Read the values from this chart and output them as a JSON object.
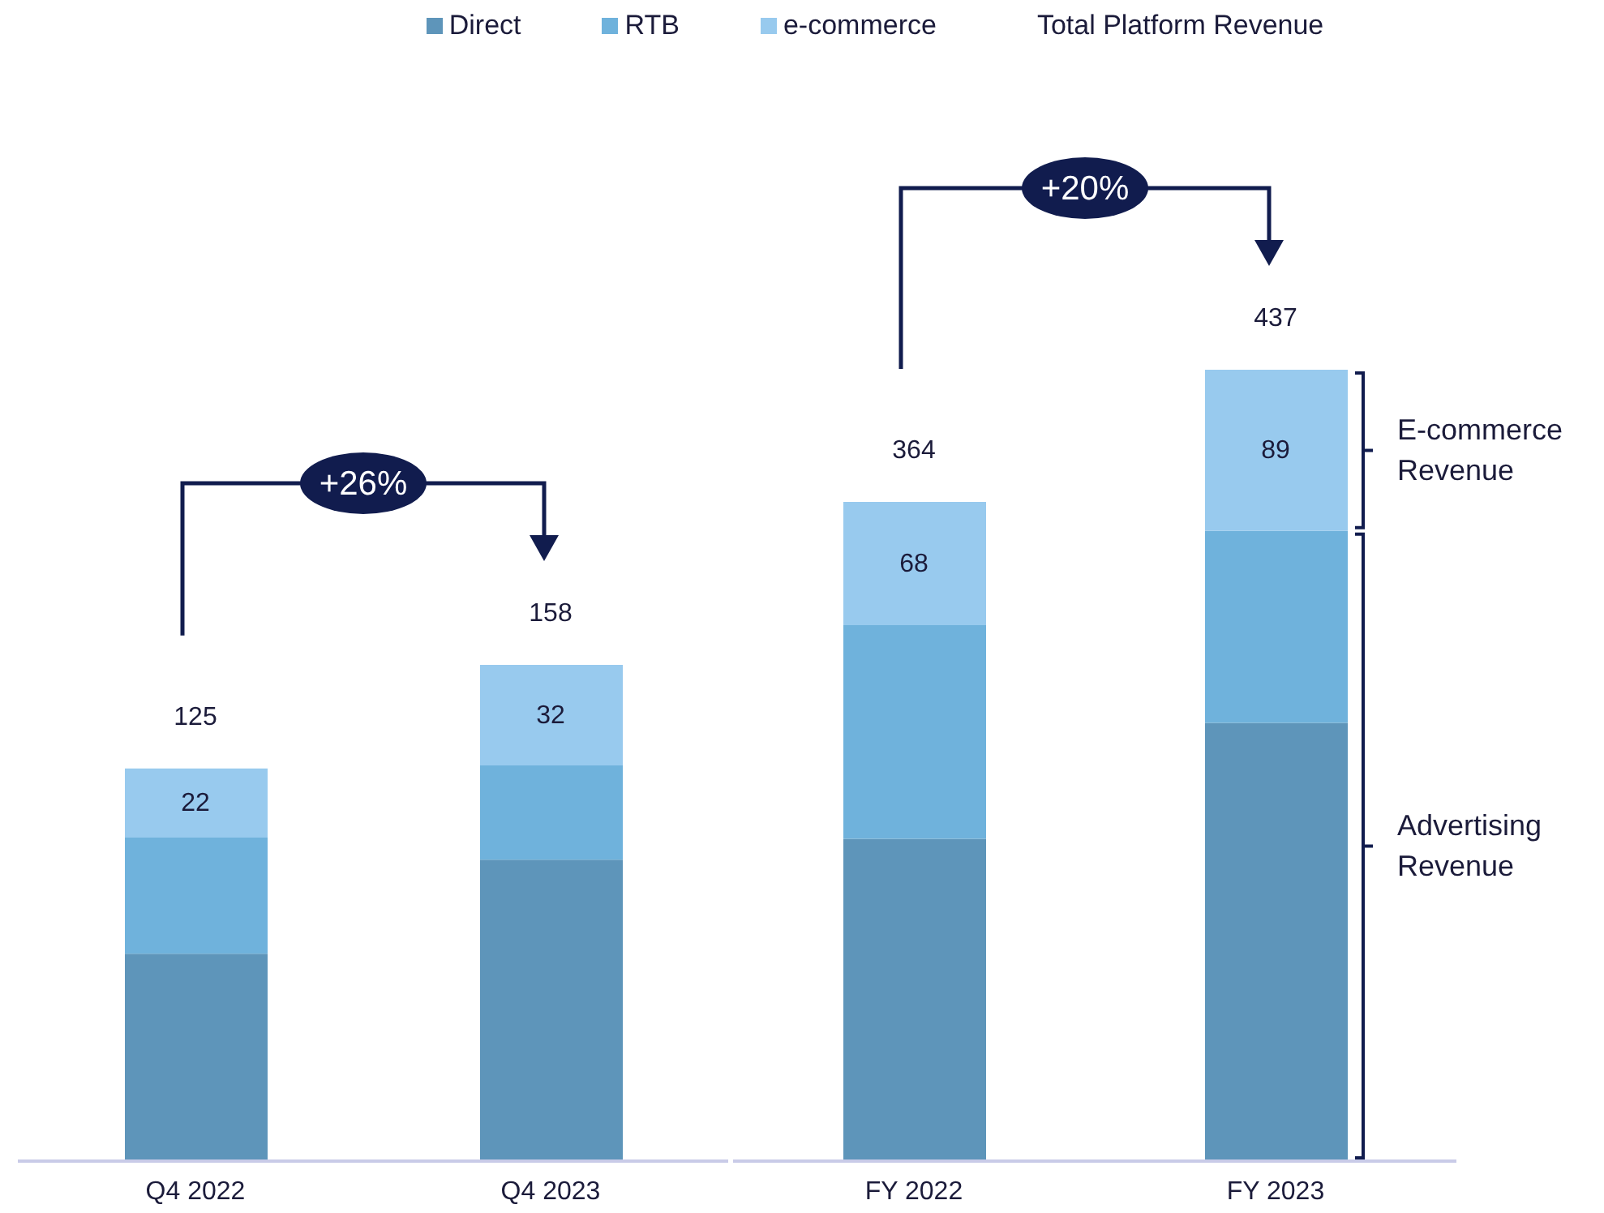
{
  "chart_data": [
    {
      "type": "bar",
      "stacked": true,
      "categories": [
        "Q4 2022",
        "Q4 2023"
      ],
      "series": [
        {
          "name": "Direct",
          "color": "#5e95ba",
          "values": [
            66,
            96
          ]
        },
        {
          "name": "RTB",
          "color": "#6fb2dc",
          "values": [
            37,
            30
          ]
        },
        {
          "name": "e-commerce",
          "color": "#98caee",
          "values": [
            22,
            32
          ],
          "value_labels": [
            "22",
            "32"
          ]
        }
      ],
      "totals": [
        "125",
        "158"
      ],
      "tick_labels": "x",
      "legend": "top",
      "legend_title": "Total Platform Revenue",
      "annotations": [
        "+26%"
      ]
    },
    {
      "type": "bar",
      "stacked": true,
      "categories": [
        "FY 2022",
        "FY 2023"
      ],
      "series": [
        {
          "color": "#5e95ba",
          "values": [
            178,
            242
          ]
        },
        {
          "color": "#6fb2dc",
          "values": [
            118,
            106
          ]
        },
        {
          "color": "#98caee",
          "values": [
            68,
            89
          ],
          "value_labels": [
            "68",
            "89"
          ]
        }
      ],
      "totals": [
        "364",
        "437"
      ],
      "tick_labels": "x",
      "annotations": [
        "+20%",
        "E-commerce Revenue",
        "Advertising Revenue"
      ]
    }
  ]
}
